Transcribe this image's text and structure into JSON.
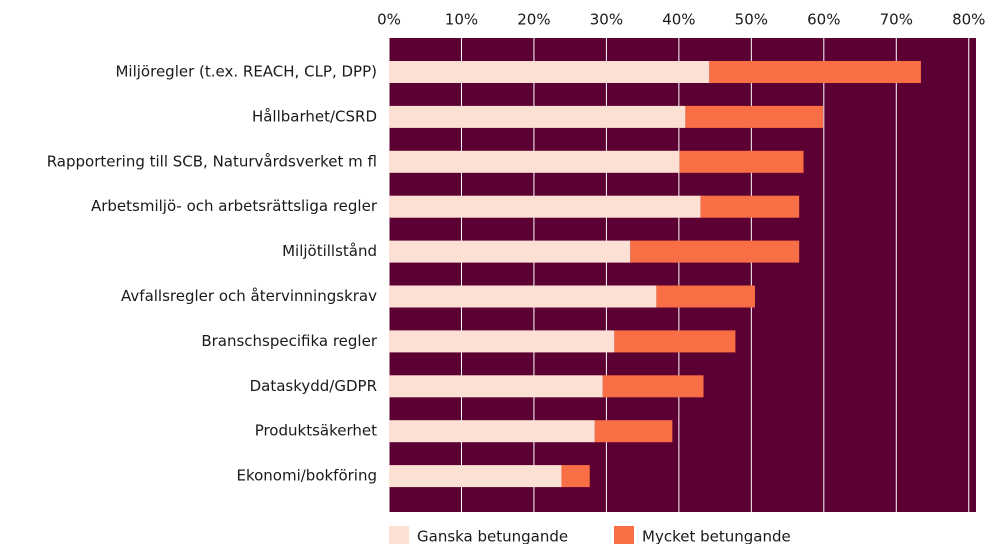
{
  "chart_data": {
    "type": "stacked-barh",
    "categories": [
      "Miljöregler (t.ex. REACH, CLP, DPP)",
      "Hållbarhet/CSRD",
      "Rapportering till SCB, Naturvårdsverket m fl",
      "Arbetsmiljö- och arbetsrättsliga regler",
      "Miljötillstånd",
      "Avfallsregler och återvinningskrav",
      "Branschspecifika regler",
      "Dataskydd/GDPR",
      "Produktsäkerhet",
      "Ekonomi/bokföring"
    ],
    "series": [
      {
        "name": "Ganska betungande",
        "color": "#fde0d4",
        "values": [
          44.2,
          40.9,
          40.1,
          43.0,
          33.3,
          36.9,
          31.1,
          29.5,
          28.4,
          23.8
        ]
      },
      {
        "name": "Mycket betungande",
        "color": "#f96f45",
        "values": [
          29.2,
          19.0,
          17.1,
          13.6,
          23.3,
          13.6,
          16.7,
          13.9,
          10.7,
          3.9
        ]
      }
    ],
    "xlim": [
      0,
      81
    ],
    "xticks": [
      {
        "value": 0,
        "label": "0%"
      },
      {
        "value": 10,
        "label": "10%"
      },
      {
        "value": 20,
        "label": "20%"
      },
      {
        "value": 30,
        "label": "30%"
      },
      {
        "value": 40,
        "label": "40%"
      },
      {
        "value": 50,
        "label": "50%"
      },
      {
        "value": 60,
        "label": "60%"
      },
      {
        "value": 70,
        "label": "70%"
      },
      {
        "value": 80,
        "label": "80%"
      }
    ],
    "grid": true,
    "background": "#5c0033",
    "legend": "bottom"
  }
}
